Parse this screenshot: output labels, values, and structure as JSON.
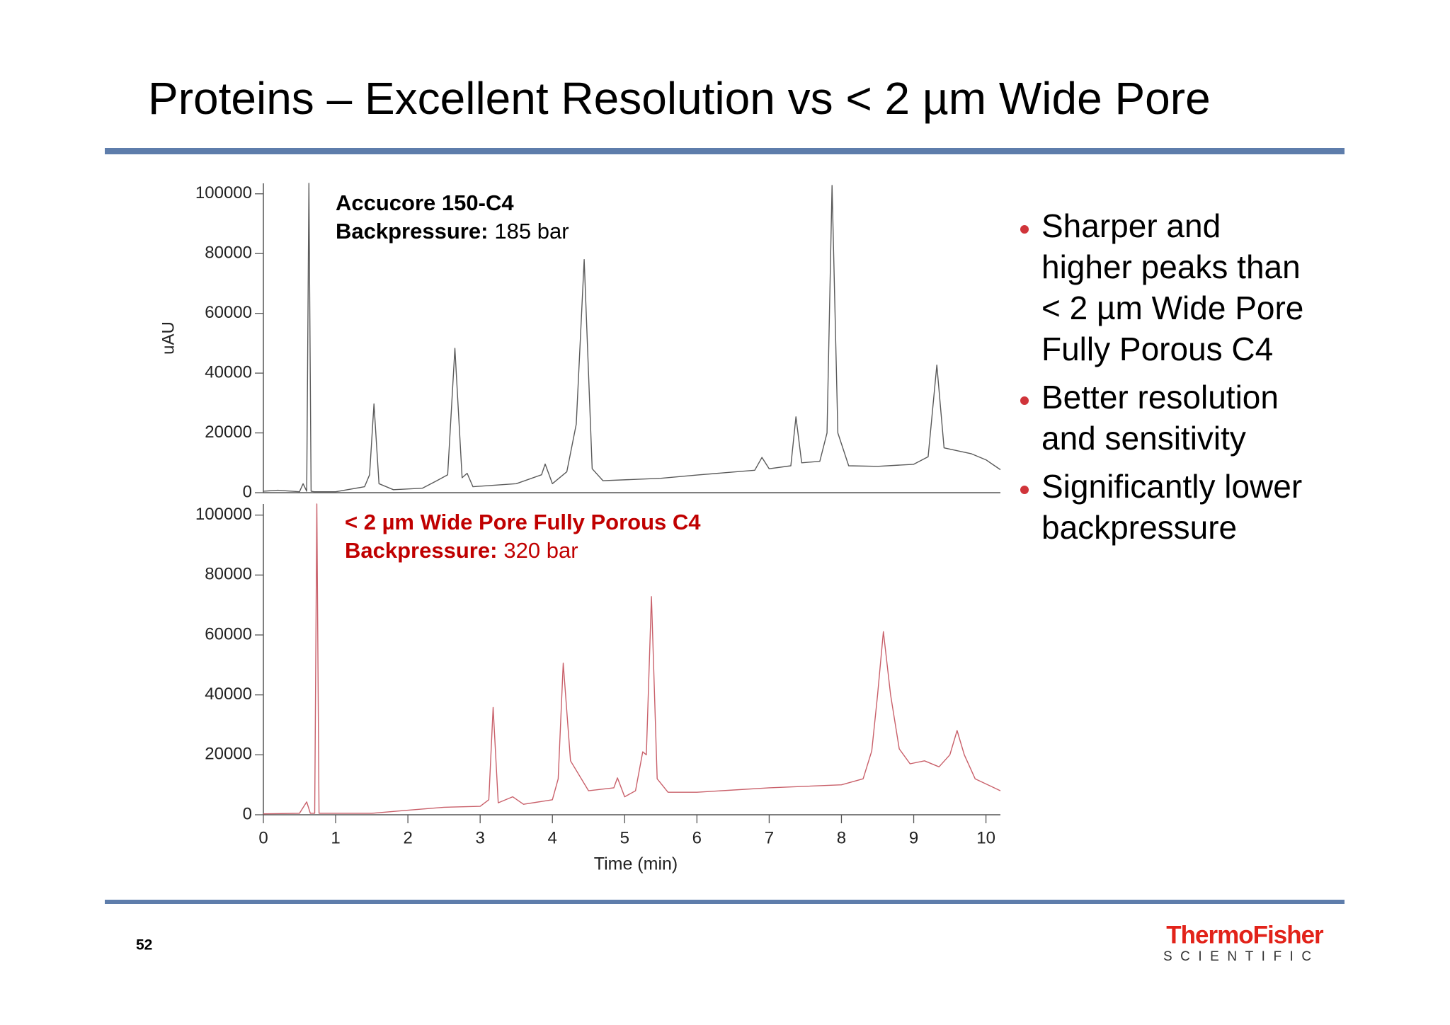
{
  "slide": {
    "title": "Proteins – Excellent Resolution vs < 2 µm Wide Pore",
    "bullets": [
      "Sharper and higher peaks than < 2 µm Wide Pore Fully Porous C4",
      "Better resolution and sensitivity",
      "Significantly lower backpressure"
    ],
    "page_number": "52",
    "logo": {
      "name": "ThermoFisher",
      "subtitle": "SCIENTIFIC"
    }
  },
  "chart_data": [
    {
      "type": "line",
      "ylabel": "uAU",
      "annotation": {
        "title": "Accucore 150-C4",
        "pressure_label": "Backpressure:",
        "pressure_value": "185 bar",
        "color": "#000000"
      },
      "color": "#5a5a5a",
      "xlim": [
        0,
        10.2
      ],
      "ylim": [
        0,
        103500
      ],
      "yticks": [
        0,
        20000,
        40000,
        60000,
        80000,
        100000
      ],
      "x": [
        0,
        0.2,
        0.5,
        0.55,
        0.6,
        0.63,
        0.66,
        0.7,
        1.0,
        1.4,
        1.47,
        1.53,
        1.6,
        1.8,
        2.2,
        2.4,
        2.55,
        2.65,
        2.75,
        2.82,
        2.9,
        3.5,
        3.85,
        3.9,
        4.0,
        4.2,
        4.33,
        4.44,
        4.55,
        4.7,
        5.5,
        6.0,
        6.8,
        6.9,
        7.0,
        7.3,
        7.37,
        7.45,
        7.7,
        7.8,
        7.87,
        7.95,
        8.1,
        8.5,
        9.0,
        9.2,
        9.32,
        9.42,
        9.8,
        10.0,
        10.2
      ],
      "values": [
        500,
        800,
        300,
        3000,
        500,
        103500,
        500,
        300,
        300,
        2000,
        6000,
        29700,
        3000,
        1000,
        1500,
        4000,
        6000,
        48300,
        5000,
        6500,
        2000,
        3000,
        6000,
        9600,
        3000,
        7000,
        22900,
        78000,
        8000,
        4000,
        4800,
        5900,
        7500,
        11800,
        8000,
        9000,
        25400,
        10000,
        10500,
        20000,
        102800,
        20000,
        9000,
        8800,
        9500,
        12000,
        42700,
        15000,
        13000,
        11000,
        7700
      ]
    },
    {
      "type": "line",
      "xlabel": "Time (min)",
      "annotation": {
        "title": "< 2 µm Wide Pore Fully Porous C4",
        "pressure_label": "Backpressure:",
        "pressure_value": "320 bar",
        "color": "#c00000"
      },
      "color": "#c9606a",
      "xlim": [
        0,
        10.2
      ],
      "ylim": [
        0,
        103700
      ],
      "yticks": [
        0,
        20000,
        40000,
        60000,
        80000,
        100000
      ],
      "xticks": [
        0,
        1,
        2,
        3,
        4,
        5,
        6,
        7,
        8,
        9,
        10
      ],
      "x": [
        0,
        0.5,
        0.6,
        0.65,
        0.71,
        0.74,
        0.77,
        0.8,
        1.5,
        2.0,
        2.5,
        3.0,
        3.12,
        3.18,
        3.25,
        3.45,
        3.6,
        4.0,
        4.08,
        4.15,
        4.25,
        4.5,
        4.85,
        4.9,
        5.0,
        5.15,
        5.25,
        5.3,
        5.37,
        5.45,
        5.6,
        6.0,
        7.0,
        8.0,
        8.3,
        8.42,
        8.5,
        8.58,
        8.68,
        8.8,
        8.95,
        9.15,
        9.35,
        9.5,
        9.6,
        9.7,
        9.85,
        10.2
      ],
      "values": [
        300,
        500,
        4300,
        500,
        500,
        103700,
        500,
        500,
        500,
        1500,
        2500,
        2800,
        5000,
        35800,
        4000,
        6000,
        3500,
        5000,
        12000,
        50600,
        18000,
        8000,
        9000,
        12300,
        6000,
        8000,
        21000,
        20000,
        72800,
        12000,
        7500,
        7500,
        9000,
        10000,
        12000,
        21300,
        40000,
        61100,
        40000,
        22000,
        17000,
        18000,
        16000,
        20000,
        28100,
        20000,
        12000,
        8000
      ]
    }
  ]
}
